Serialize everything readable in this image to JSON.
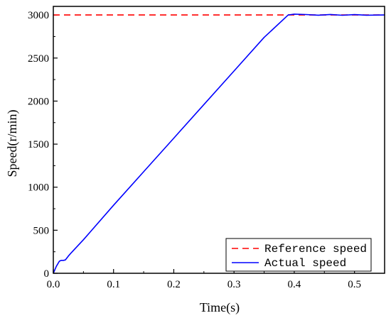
{
  "chart_data": {
    "type": "line",
    "xlabel": "Time(s)",
    "ylabel": "Speed(r/min)",
    "xlim": [
      0.0,
      0.55
    ],
    "ylim": [
      0,
      3100
    ],
    "x_ticks": [
      0.0,
      0.1,
      0.2,
      0.3,
      0.4,
      0.5
    ],
    "x_tick_labels": [
      "0.0",
      "0.1",
      "0.2",
      "0.3",
      "0.4",
      "0.5"
    ],
    "y_ticks": [
      0,
      500,
      1000,
      1500,
      2000,
      2500,
      3000
    ],
    "y_tick_labels": [
      "0",
      "500",
      "1000",
      "1500",
      "2000",
      "2500",
      "3000"
    ],
    "grid": false,
    "legend_position": "bottom-right",
    "series": [
      {
        "name": "Reference speed",
        "color": "#ff0000",
        "style": "dashed",
        "x": [
          0.0,
          0.55
        ],
        "y": [
          3000,
          3000
        ]
      },
      {
        "name": "Actual speed",
        "color": "#0000ff",
        "style": "solid",
        "x": [
          0.0,
          0.005,
          0.01,
          0.013,
          0.017,
          0.02,
          0.025,
          0.03,
          0.05,
          0.1,
          0.15,
          0.2,
          0.25,
          0.3,
          0.35,
          0.39,
          0.395,
          0.4,
          0.42,
          0.44,
          0.46,
          0.48,
          0.5,
          0.52,
          0.55
        ],
        "y": [
          0,
          80,
          140,
          150,
          150,
          155,
          200,
          240,
          390,
          790,
          1180,
          1570,
          1960,
          2350,
          2740,
          3000,
          3005,
          3010,
          3005,
          2998,
          3006,
          2997,
          3004,
          2998,
          3000
        ]
      }
    ]
  }
}
